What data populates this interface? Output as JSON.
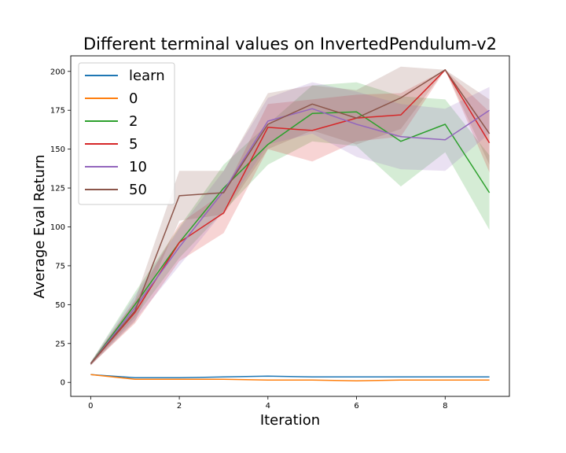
{
  "chart_data": {
    "type": "line",
    "title": "Different terminal values on InvertedPendulum-v2",
    "xlabel": "Iteration",
    "ylabel": "Average Eval Return",
    "xlim": [
      -0.45,
      9.45
    ],
    "ylim": [
      -9,
      210
    ],
    "xticks": [
      0,
      2,
      4,
      6,
      8
    ],
    "yticks": [
      0,
      25,
      50,
      75,
      100,
      125,
      150,
      175,
      200
    ],
    "grid": false,
    "legend_position": "top-left",
    "x": [
      0,
      1,
      2,
      3,
      4,
      5,
      6,
      7,
      8,
      9
    ],
    "series": [
      {
        "name": "learn",
        "color": "#1f77b4",
        "values": [
          5,
          3,
          3,
          3.5,
          4,
          3.5,
          3.5,
          3.5,
          3.5,
          3.5
        ],
        "lower": [
          5,
          3,
          3,
          3.5,
          4,
          3.5,
          3.5,
          3.5,
          3.5,
          3.5
        ],
        "upper": [
          5,
          3,
          3,
          3.5,
          4,
          3.5,
          3.5,
          3.5,
          3.5,
          3.5
        ]
      },
      {
        "name": "0",
        "color": "#ff7f0e",
        "values": [
          5,
          2,
          2,
          2,
          1.5,
          1.5,
          1,
          1.5,
          1.5,
          1.5
        ],
        "lower": [
          5,
          2,
          2,
          2,
          1.5,
          1.5,
          1,
          1.5,
          1.5,
          1.5
        ],
        "upper": [
          5,
          2,
          2,
          2,
          1.5,
          1.5,
          1,
          1.5,
          1.5,
          1.5
        ]
      },
      {
        "name": "2",
        "color": "#2ca02c",
        "values": [
          12,
          50,
          90,
          125,
          153,
          173,
          174,
          155,
          166,
          122
        ],
        "lower": [
          11,
          42,
          80,
          110,
          140,
          155,
          152,
          126,
          148,
          98
        ],
        "upper": [
          13,
          58,
          100,
          140,
          166,
          191,
          193,
          184,
          182,
          146
        ]
      },
      {
        "name": "5",
        "color": "#d62728",
        "values": [
          12,
          45,
          90,
          109,
          164,
          162,
          170,
          172,
          201,
          154
        ],
        "lower": [
          11,
          38,
          78,
          96,
          150,
          142,
          155,
          158,
          201,
          135
        ],
        "upper": [
          13,
          52,
          102,
          122,
          179,
          182,
          185,
          186,
          201,
          174
        ]
      },
      {
        "name": "10",
        "color": "#9467bd",
        "values": [
          12,
          48,
          87,
          123,
          168,
          176,
          166,
          158,
          156,
          175
        ],
        "lower": [
          11,
          40,
          75,
          110,
          153,
          160,
          145,
          137,
          136,
          160
        ],
        "upper": [
          13,
          56,
          99,
          136,
          183,
          193,
          187,
          179,
          176,
          190
        ]
      },
      {
        "name": "50",
        "color": "#8c564b",
        "values": [
          12,
          46,
          120,
          122,
          166,
          179,
          170,
          183,
          201,
          160
        ],
        "lower": [
          11,
          39,
          104,
          108,
          150,
          162,
          153,
          163,
          201,
          140
        ],
        "upper": [
          13,
          53,
          136,
          136,
          186,
          191,
          188,
          203,
          201,
          182
        ]
      }
    ]
  }
}
